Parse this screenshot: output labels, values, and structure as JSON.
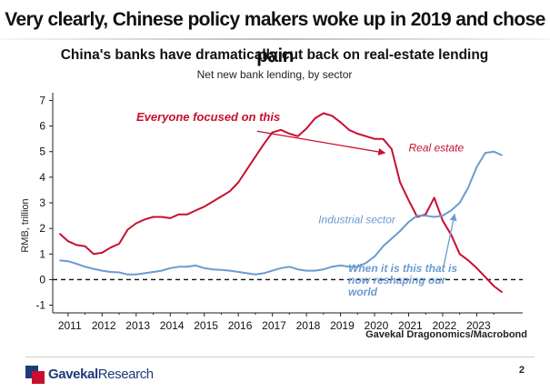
{
  "slide": {
    "title": "Very clearly, Chinese policy makers woke up in 2019 and chose pain",
    "page_number": "2"
  },
  "brand": {
    "logo_bold": "Gavekal",
    "logo_regular": "Research",
    "colors": {
      "navy": "#1f3a78",
      "red": "#c8102e"
    }
  },
  "chart_data": {
    "type": "line",
    "title": "China's banks have dramatically cut back on real-estate lending",
    "subtitle": "Net new bank lending, by sector",
    "ylabel": "RMB, trillion",
    "xlabel": "",
    "source": "Gavekal Dragonomics/Macrobond",
    "ylim": [
      -1.3,
      7.3
    ],
    "xlim": [
      2010.55,
      2024.35
    ],
    "y_ticks": [
      "-1",
      "0",
      "1",
      "2",
      "3",
      "4",
      "5",
      "6",
      "7"
    ],
    "x_ticks": [
      "2011",
      "2012",
      "2013",
      "2014",
      "2015",
      "2016",
      "2017",
      "2018",
      "2019",
      "2020",
      "2021",
      "2022",
      "2023"
    ],
    "zero_line": "dashed",
    "grid": false,
    "series": [
      {
        "name": "Real estate",
        "color": "#c8102e",
        "points": [
          [
            2010.75,
            1.8
          ],
          [
            2011.0,
            1.5
          ],
          [
            2011.25,
            1.35
          ],
          [
            2011.5,
            1.3
          ],
          [
            2011.75,
            1.0
          ],
          [
            2012.0,
            1.05
          ],
          [
            2012.25,
            1.25
          ],
          [
            2012.5,
            1.4
          ],
          [
            2012.75,
            1.95
          ],
          [
            2013.0,
            2.2
          ],
          [
            2013.25,
            2.35
          ],
          [
            2013.5,
            2.45
          ],
          [
            2013.75,
            2.45
          ],
          [
            2014.0,
            2.4
          ],
          [
            2014.25,
            2.55
          ],
          [
            2014.5,
            2.55
          ],
          [
            2014.75,
            2.7
          ],
          [
            2015.0,
            2.85
          ],
          [
            2015.25,
            3.05
          ],
          [
            2015.5,
            3.25
          ],
          [
            2015.75,
            3.45
          ],
          [
            2016.0,
            3.8
          ],
          [
            2016.25,
            4.3
          ],
          [
            2016.5,
            4.8
          ],
          [
            2016.75,
            5.3
          ],
          [
            2017.0,
            5.75
          ],
          [
            2017.25,
            5.85
          ],
          [
            2017.5,
            5.7
          ],
          [
            2017.75,
            5.6
          ],
          [
            2018.0,
            5.9
          ],
          [
            2018.25,
            6.3
          ],
          [
            2018.5,
            6.5
          ],
          [
            2018.75,
            6.4
          ],
          [
            2019.0,
            6.15
          ],
          [
            2019.25,
            5.85
          ],
          [
            2019.5,
            5.7
          ],
          [
            2019.75,
            5.6
          ],
          [
            2020.0,
            5.5
          ],
          [
            2020.25,
            5.5
          ],
          [
            2020.5,
            5.1
          ],
          [
            2020.75,
            3.8
          ],
          [
            2021.0,
            3.1
          ],
          [
            2021.25,
            2.45
          ],
          [
            2021.5,
            2.55
          ],
          [
            2021.75,
            3.2
          ],
          [
            2022.0,
            2.3
          ],
          [
            2022.25,
            1.75
          ],
          [
            2022.5,
            1.0
          ],
          [
            2022.75,
            0.75
          ],
          [
            2023.0,
            0.45
          ],
          [
            2023.25,
            0.1
          ],
          [
            2023.5,
            -0.25
          ],
          [
            2023.75,
            -0.5
          ]
        ]
      },
      {
        "name": "Industrial sector",
        "color": "#6b9bd2",
        "points": [
          [
            2010.75,
            0.75
          ],
          [
            2011.0,
            0.72
          ],
          [
            2011.25,
            0.62
          ],
          [
            2011.5,
            0.5
          ],
          [
            2011.75,
            0.42
          ],
          [
            2012.0,
            0.35
          ],
          [
            2012.25,
            0.3
          ],
          [
            2012.5,
            0.28
          ],
          [
            2012.75,
            0.2
          ],
          [
            2013.0,
            0.2
          ],
          [
            2013.25,
            0.25
          ],
          [
            2013.5,
            0.3
          ],
          [
            2013.75,
            0.35
          ],
          [
            2014.0,
            0.45
          ],
          [
            2014.25,
            0.5
          ],
          [
            2014.5,
            0.5
          ],
          [
            2014.75,
            0.55
          ],
          [
            2015.0,
            0.45
          ],
          [
            2015.25,
            0.4
          ],
          [
            2015.5,
            0.38
          ],
          [
            2015.75,
            0.35
          ],
          [
            2016.0,
            0.3
          ],
          [
            2016.25,
            0.25
          ],
          [
            2016.5,
            0.2
          ],
          [
            2016.75,
            0.25
          ],
          [
            2017.0,
            0.35
          ],
          [
            2017.25,
            0.45
          ],
          [
            2017.5,
            0.5
          ],
          [
            2017.75,
            0.4
          ],
          [
            2018.0,
            0.35
          ],
          [
            2018.25,
            0.35
          ],
          [
            2018.5,
            0.4
          ],
          [
            2018.75,
            0.5
          ],
          [
            2019.0,
            0.55
          ],
          [
            2019.25,
            0.5
          ],
          [
            2019.5,
            0.5
          ],
          [
            2019.75,
            0.65
          ],
          [
            2020.0,
            0.9
          ],
          [
            2020.25,
            1.3
          ],
          [
            2020.5,
            1.6
          ],
          [
            2020.75,
            1.9
          ],
          [
            2021.0,
            2.25
          ],
          [
            2021.25,
            2.5
          ],
          [
            2021.5,
            2.5
          ],
          [
            2021.75,
            2.45
          ],
          [
            2022.0,
            2.5
          ],
          [
            2022.25,
            2.7
          ],
          [
            2022.5,
            3.0
          ],
          [
            2022.75,
            3.6
          ],
          [
            2023.0,
            4.4
          ],
          [
            2023.25,
            4.95
          ],
          [
            2023.5,
            5.0
          ],
          [
            2023.75,
            4.85
          ]
        ]
      }
    ],
    "series_labels": [
      {
        "text": "Real estate",
        "x": 2021.0,
        "y": 5.0,
        "color": "#c8102e"
      },
      {
        "text": "Industrial sector",
        "x": 2018.35,
        "y": 2.2,
        "color": "#6b9bd2"
      }
    ],
    "annotations": [
      {
        "text": "Everyone focused on this",
        "color": "#c8102e",
        "arrow": {
          "from": [
            2016.55,
            5.8
          ],
          "to": [
            2020.3,
            4.95
          ]
        }
      },
      {
        "text_lines": [
          "When it is this that is",
          "now reshaping our",
          "world"
        ],
        "color": "#6b9bd2",
        "arrow": {
          "from": [
            2022.0,
            0.35
          ],
          "to": [
            2022.35,
            2.55
          ]
        }
      }
    ]
  }
}
